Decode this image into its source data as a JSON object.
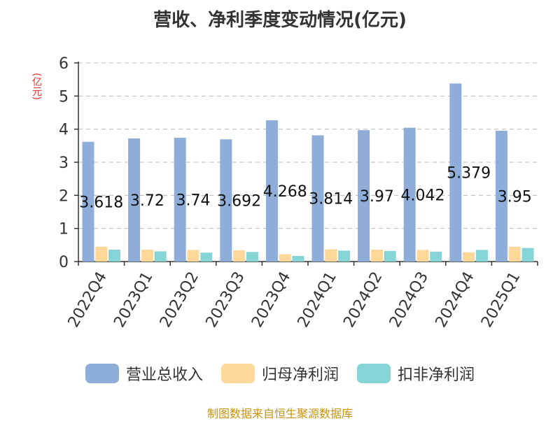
{
  "title": "营收、净利季度变动情况(亿元)",
  "unit_label": "(亿元)",
  "source_text": "制图数据来自恒生聚源数据库",
  "colors": {
    "revenue": "#8eadd9",
    "net_profit": "#fdd899",
    "deducted_profit": "#86d4d6",
    "grid": "#bbbbbb",
    "axis": "#333333"
  },
  "chart_data": {
    "type": "bar",
    "categories": [
      "2022Q4",
      "2023Q1",
      "2023Q2",
      "2023Q3",
      "2023Q4",
      "2024Q1",
      "2024Q2",
      "2024Q3",
      "2024Q4",
      "2025Q1"
    ],
    "series": [
      {
        "name": "营业总收入",
        "color_key": "revenue",
        "values": [
          3.618,
          3.72,
          3.74,
          3.692,
          4.268,
          3.814,
          3.97,
          4.042,
          5.379,
          3.95
        ]
      },
      {
        "name": "归母净利润",
        "color_key": "net_profit",
        "values": [
          0.45,
          0.36,
          0.35,
          0.34,
          0.22,
          0.37,
          0.36,
          0.35,
          0.28,
          0.45
        ]
      },
      {
        "name": "扣非净利润",
        "color_key": "deducted_profit",
        "values": [
          0.36,
          0.31,
          0.27,
          0.29,
          0.17,
          0.33,
          0.32,
          0.3,
          0.35,
          0.41
        ]
      }
    ],
    "data_labels": [
      "3.618",
      "3.72",
      "3.74",
      "3.692",
      "4.268",
      "3.814",
      "3.97",
      "4.042",
      "5.379",
      "3.95"
    ],
    "y_ticks": [
      "0",
      "1",
      "2",
      "3",
      "4",
      "5",
      "6"
    ],
    "ylim": [
      0,
      6
    ],
    "grid": true,
    "legend_position": "bottom"
  }
}
